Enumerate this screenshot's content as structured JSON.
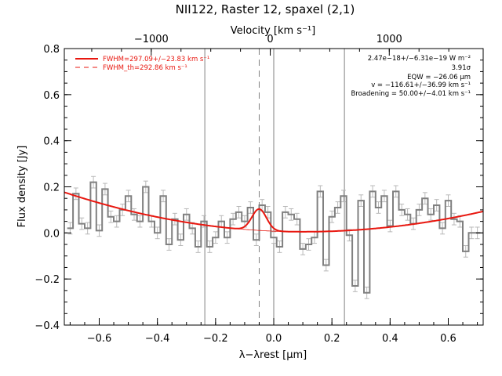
{
  "chart_data": {
    "type": "line",
    "title": "NII122, Raster 12, spaxel (2,1)",
    "xlabel": "λ−λrest [μm]",
    "ylabel": "Flux density [Jy]",
    "top_xlabel": "Velocity [km s⁻¹]",
    "xlim": [
      -0.72,
      0.72
    ],
    "ylim": [
      -0.4,
      0.8
    ],
    "x_ticks": [
      "−0.6",
      "−0.4",
      "−0.2",
      "0.0",
      "0.2",
      "0.4",
      "0.6"
    ],
    "x_tick_values": [
      -0.6,
      -0.4,
      -0.2,
      0.0,
      0.2,
      0.4,
      0.6
    ],
    "y_ticks": [
      "−0.4",
      "−0.2",
      "0.0",
      "0.2",
      "0.4",
      "0.6",
      "0.8"
    ],
    "y_tick_values": [
      -0.4,
      -0.2,
      0.0,
      0.2,
      0.4,
      0.6,
      0.8
    ],
    "top_ticks": [
      "−1000",
      "0",
      "1000"
    ],
    "top_tick_values": [
      -1000,
      0,
      1000
    ],
    "velocity_per_micron": 2444,
    "velocity_zero_um": -0.012,
    "grid": false,
    "legend_position": "top-left",
    "colors": {
      "data": "#808080",
      "fit": "#e8170f",
      "marker_line": "#808080",
      "axes": "#000000"
    },
    "series": [
      {
        "name": "spectrum",
        "style": "histogram",
        "x": [
          -0.7,
          -0.68,
          -0.66,
          -0.64,
          -0.62,
          -0.6,
          -0.58,
          -0.56,
          -0.54,
          -0.52,
          -0.5,
          -0.48,
          -0.46,
          -0.44,
          -0.42,
          -0.4,
          -0.38,
          -0.36,
          -0.34,
          -0.32,
          -0.3,
          -0.28,
          -0.26,
          -0.24,
          -0.22,
          -0.2,
          -0.18,
          -0.16,
          -0.14,
          -0.12,
          -0.1,
          -0.08,
          -0.06,
          -0.04,
          -0.02,
          0.0,
          0.02,
          0.04,
          0.06,
          0.08,
          0.1,
          0.12,
          0.14,
          0.16,
          0.18,
          0.2,
          0.22,
          0.24,
          0.26,
          0.28,
          0.3,
          0.32,
          0.34,
          0.36,
          0.38,
          0.4,
          0.42,
          0.44,
          0.46,
          0.48,
          0.5,
          0.52,
          0.54,
          0.56,
          0.58,
          0.6,
          0.62,
          0.64,
          0.66,
          0.68,
          0.7
        ],
        "y": [
          0.02,
          0.17,
          0.04,
          0.02,
          0.22,
          0.01,
          0.19,
          0.07,
          0.05,
          0.1,
          0.16,
          0.08,
          0.05,
          0.2,
          0.05,
          0.0,
          0.16,
          -0.05,
          0.06,
          -0.03,
          0.08,
          0.02,
          -0.06,
          0.05,
          -0.06,
          -0.02,
          0.05,
          -0.02,
          0.06,
          0.09,
          0.05,
          0.11,
          -0.03,
          0.12,
          0.09,
          -0.02,
          -0.06,
          0.09,
          0.08,
          0.06,
          -0.07,
          -0.05,
          -0.02,
          0.18,
          -0.14,
          0.07,
          0.11,
          0.16,
          -0.01,
          -0.23,
          0.14,
          -0.26,
          0.18,
          0.11,
          0.16,
          0.03,
          0.18,
          0.1,
          0.08,
          0.04,
          0.1,
          0.15,
          0.08,
          0.12,
          0.02,
          0.14,
          0.06,
          0.05,
          -0.08,
          0.0,
          0.0
        ],
        "error": 0.025
      },
      {
        "name": "FWHM=297.09+/−23.83 km s⁻¹",
        "style": "fit",
        "baseline": {
          "x_min": 0.1,
          "y_min": 0.005,
          "curvature_left": 0.255,
          "curvature_right": 0.23
        },
        "gaussian": {
          "center": -0.05,
          "amplitude": 0.093,
          "sigma": 0.025
        }
      },
      {
        "name": "FWHM_th=292.86 km s⁻¹",
        "style": "dashed",
        "vline_x": -0.05
      }
    ],
    "reference_lines_x": [
      -0.237,
      0.0,
      0.243
    ],
    "annotations": [
      "2.47e−18+/−6.31e−19 W m⁻²",
      "3.91σ",
      "EQW = −26.06 μm",
      "v = −116.61+/−36.99 km s⁻¹",
      "Broadening = 50.00+/−4.01 km s⁻¹"
    ]
  }
}
